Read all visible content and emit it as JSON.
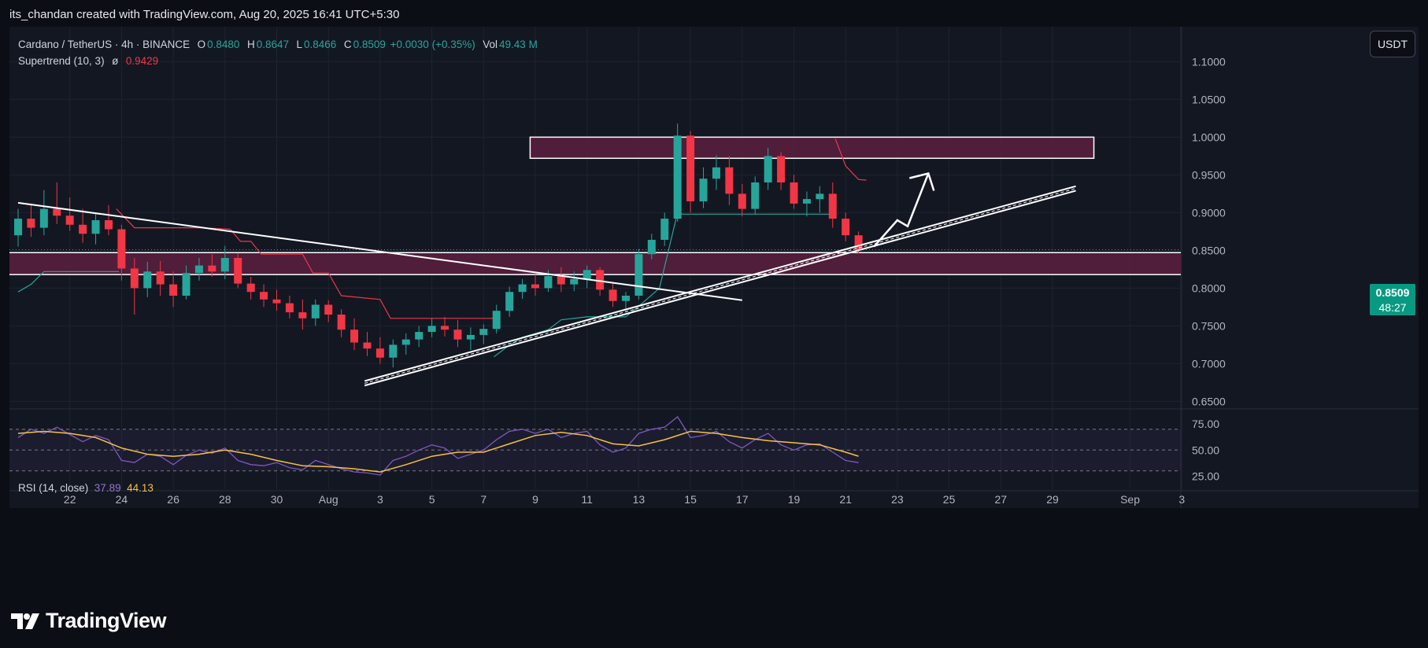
{
  "header": {
    "attribution": "its_chandan created with TradingView.com, Aug 20, 2025 16:41 UTC+5:30"
  },
  "legend": {
    "symbol": "Cardano / TetherUS · 4h · BINANCE",
    "o_label": "O",
    "open": "0.8480",
    "h_label": "H",
    "high": "0.8647",
    "l_label": "L",
    "low": "0.8466",
    "c_label": "C",
    "close": "0.8509",
    "change": "+0.0030 (+0.35%)",
    "vol_label": "Vol",
    "volume": "49.43 M",
    "indicator": "Supertrend (10, 3)",
    "indicator_symbol": "ø",
    "indicator_value": "0.9429"
  },
  "rsi_legend": {
    "name": "RSI (14, close)",
    "rsi": "37.89",
    "ma": "44.13"
  },
  "currency_button": "USDT",
  "price_tag": {
    "price": "0.8509",
    "countdown": "48:27"
  },
  "brand": {
    "name": "TradingView"
  },
  "colors": {
    "up": "#26a69a",
    "down": "#f23645",
    "rsi": "#7e57c2",
    "rsi_ma": "#f5c242",
    "zone": "#5c1f3f",
    "background": "#131722"
  },
  "chart_data": {
    "type": "candlestick",
    "title": "Cardano / TetherUS · 4h · BINANCE",
    "yaxis_ticks": [
      "1.1000",
      "1.0500",
      "1.0000",
      "0.9500",
      "0.9000",
      "0.8500",
      "0.8000",
      "0.7500",
      "0.7000",
      "0.6500"
    ],
    "ylim": [
      0.64,
      1.14
    ],
    "xaxis_ticks": [
      "22",
      "24",
      "26",
      "28",
      "30",
      "Aug",
      "3",
      "5",
      "7",
      "9",
      "11",
      "13",
      "15",
      "17",
      "19",
      "21",
      "23",
      "25",
      "27",
      "29",
      "Sep",
      "3"
    ],
    "xaxis_days": [
      22,
      24,
      26,
      28,
      30,
      32,
      34,
      36,
      38,
      40,
      42,
      44,
      46,
      48,
      50,
      52,
      54,
      56,
      58,
      60,
      63,
      65
    ],
    "candles_daily": [
      {
        "day": 20.0,
        "o": 0.87,
        "h": 0.905,
        "l": 0.855,
        "c": 0.892
      },
      {
        "day": 20.5,
        "o": 0.892,
        "h": 0.912,
        "l": 0.868,
        "c": 0.88
      },
      {
        "day": 21.0,
        "o": 0.88,
        "h": 0.93,
        "l": 0.87,
        "c": 0.905
      },
      {
        "day": 21.5,
        "o": 0.905,
        "h": 0.94,
        "l": 0.885,
        "c": 0.896
      },
      {
        "day": 22.0,
        "o": 0.896,
        "h": 0.92,
        "l": 0.876,
        "c": 0.884
      },
      {
        "day": 22.5,
        "o": 0.884,
        "h": 0.905,
        "l": 0.86,
        "c": 0.872
      },
      {
        "day": 23.0,
        "o": 0.872,
        "h": 0.898,
        "l": 0.858,
        "c": 0.89
      },
      {
        "day": 23.5,
        "o": 0.89,
        "h": 0.91,
        "l": 0.87,
        "c": 0.878
      },
      {
        "day": 24.0,
        "o": 0.878,
        "h": 0.884,
        "l": 0.81,
        "c": 0.826
      },
      {
        "day": 24.5,
        "o": 0.826,
        "h": 0.84,
        "l": 0.765,
        "c": 0.8
      },
      {
        "day": 25.0,
        "o": 0.8,
        "h": 0.835,
        "l": 0.788,
        "c": 0.822
      },
      {
        "day": 25.5,
        "o": 0.822,
        "h": 0.836,
        "l": 0.79,
        "c": 0.805
      },
      {
        "day": 26.0,
        "o": 0.805,
        "h": 0.822,
        "l": 0.775,
        "c": 0.79
      },
      {
        "day": 26.5,
        "o": 0.79,
        "h": 0.83,
        "l": 0.785,
        "c": 0.82
      },
      {
        "day": 27.0,
        "o": 0.82,
        "h": 0.84,
        "l": 0.81,
        "c": 0.83
      },
      {
        "day": 27.5,
        "o": 0.83,
        "h": 0.845,
        "l": 0.815,
        "c": 0.822
      },
      {
        "day": 28.0,
        "o": 0.822,
        "h": 0.856,
        "l": 0.812,
        "c": 0.84
      },
      {
        "day": 28.5,
        "o": 0.84,
        "h": 0.846,
        "l": 0.8,
        "c": 0.806
      },
      {
        "day": 29.0,
        "o": 0.806,
        "h": 0.815,
        "l": 0.785,
        "c": 0.795
      },
      {
        "day": 29.5,
        "o": 0.795,
        "h": 0.805,
        "l": 0.775,
        "c": 0.785
      },
      {
        "day": 30.0,
        "o": 0.785,
        "h": 0.798,
        "l": 0.77,
        "c": 0.78
      },
      {
        "day": 30.5,
        "o": 0.78,
        "h": 0.79,
        "l": 0.76,
        "c": 0.768
      },
      {
        "day": 31.0,
        "o": 0.768,
        "h": 0.785,
        "l": 0.745,
        "c": 0.76
      },
      {
        "day": 31.5,
        "o": 0.76,
        "h": 0.785,
        "l": 0.75,
        "c": 0.778
      },
      {
        "day": 32.0,
        "o": 0.778,
        "h": 0.784,
        "l": 0.755,
        "c": 0.765
      },
      {
        "day": 32.5,
        "o": 0.765,
        "h": 0.772,
        "l": 0.735,
        "c": 0.745
      },
      {
        "day": 33.0,
        "o": 0.745,
        "h": 0.76,
        "l": 0.718,
        "c": 0.728
      },
      {
        "day": 33.5,
        "o": 0.728,
        "h": 0.742,
        "l": 0.71,
        "c": 0.72
      },
      {
        "day": 34.0,
        "o": 0.72,
        "h": 0.735,
        "l": 0.7,
        "c": 0.708
      },
      {
        "day": 34.5,
        "o": 0.708,
        "h": 0.732,
        "l": 0.695,
        "c": 0.725
      },
      {
        "day": 35.0,
        "o": 0.725,
        "h": 0.74,
        "l": 0.712,
        "c": 0.732
      },
      {
        "day": 35.5,
        "o": 0.732,
        "h": 0.75,
        "l": 0.722,
        "c": 0.742
      },
      {
        "day": 36.0,
        "o": 0.742,
        "h": 0.76,
        "l": 0.735,
        "c": 0.75
      },
      {
        "day": 36.5,
        "o": 0.75,
        "h": 0.762,
        "l": 0.736,
        "c": 0.745
      },
      {
        "day": 37.0,
        "o": 0.745,
        "h": 0.758,
        "l": 0.722,
        "c": 0.732
      },
      {
        "day": 37.5,
        "o": 0.732,
        "h": 0.748,
        "l": 0.718,
        "c": 0.738
      },
      {
        "day": 38.0,
        "o": 0.738,
        "h": 0.752,
        "l": 0.726,
        "c": 0.746
      },
      {
        "day": 38.5,
        "o": 0.746,
        "h": 0.778,
        "l": 0.74,
        "c": 0.77
      },
      {
        "day": 39.0,
        "o": 0.77,
        "h": 0.802,
        "l": 0.762,
        "c": 0.795
      },
      {
        "day": 39.5,
        "o": 0.795,
        "h": 0.812,
        "l": 0.786,
        "c": 0.805
      },
      {
        "day": 40.0,
        "o": 0.805,
        "h": 0.818,
        "l": 0.79,
        "c": 0.8
      },
      {
        "day": 40.5,
        "o": 0.8,
        "h": 0.824,
        "l": 0.795,
        "c": 0.816
      },
      {
        "day": 41.0,
        "o": 0.816,
        "h": 0.828,
        "l": 0.795,
        "c": 0.805
      },
      {
        "day": 41.5,
        "o": 0.805,
        "h": 0.822,
        "l": 0.796,
        "c": 0.812
      },
      {
        "day": 42.0,
        "o": 0.812,
        "h": 0.83,
        "l": 0.8,
        "c": 0.824
      },
      {
        "day": 42.5,
        "o": 0.824,
        "h": 0.828,
        "l": 0.79,
        "c": 0.798
      },
      {
        "day": 43.0,
        "o": 0.798,
        "h": 0.808,
        "l": 0.775,
        "c": 0.783
      },
      {
        "day": 43.5,
        "o": 0.783,
        "h": 0.795,
        "l": 0.77,
        "c": 0.79
      },
      {
        "day": 44.0,
        "o": 0.79,
        "h": 0.852,
        "l": 0.785,
        "c": 0.845
      },
      {
        "day": 44.5,
        "o": 0.845,
        "h": 0.872,
        "l": 0.838,
        "c": 0.864
      },
      {
        "day": 45.0,
        "o": 0.864,
        "h": 0.9,
        "l": 0.856,
        "c": 0.892
      },
      {
        "day": 45.5,
        "o": 0.892,
        "h": 1.018,
        "l": 0.888,
        "c": 1.002
      },
      {
        "day": 46.0,
        "o": 1.002,
        "h": 1.008,
        "l": 0.9,
        "c": 0.915
      },
      {
        "day": 46.5,
        "o": 0.915,
        "h": 0.96,
        "l": 0.906,
        "c": 0.945
      },
      {
        "day": 47.0,
        "o": 0.945,
        "h": 0.976,
        "l": 0.93,
        "c": 0.96
      },
      {
        "day": 47.5,
        "o": 0.96,
        "h": 0.975,
        "l": 0.91,
        "c": 0.925
      },
      {
        "day": 48.0,
        "o": 0.925,
        "h": 0.938,
        "l": 0.895,
        "c": 0.905
      },
      {
        "day": 48.5,
        "o": 0.905,
        "h": 0.948,
        "l": 0.898,
        "c": 0.94
      },
      {
        "day": 49.0,
        "o": 0.94,
        "h": 0.986,
        "l": 0.93,
        "c": 0.975
      },
      {
        "day": 49.5,
        "o": 0.975,
        "h": 0.98,
        "l": 0.93,
        "c": 0.94
      },
      {
        "day": 50.0,
        "o": 0.94,
        "h": 0.95,
        "l": 0.905,
        "c": 0.912
      },
      {
        "day": 50.5,
        "o": 0.912,
        "h": 0.928,
        "l": 0.895,
        "c": 0.918
      },
      {
        "day": 51.0,
        "o": 0.918,
        "h": 0.935,
        "l": 0.9,
        "c": 0.925
      },
      {
        "day": 51.5,
        "o": 0.925,
        "h": 0.94,
        "l": 0.88,
        "c": 0.892
      },
      {
        "day": 52.0,
        "o": 0.892,
        "h": 0.9,
        "l": 0.862,
        "c": 0.87
      },
      {
        "day": 52.5,
        "o": 0.87,
        "h": 0.875,
        "l": 0.846,
        "c": 0.851
      }
    ],
    "supertrend_down": [
      {
        "day": 23.8,
        "y": 0.905
      },
      {
        "day": 24.5,
        "y": 0.88
      },
      {
        "day": 27.0,
        "y": 0.88
      },
      {
        "day": 28.2,
        "y": 0.878
      },
      {
        "day": 28.6,
        "y": 0.862
      },
      {
        "day": 29.0,
        "y": 0.862
      },
      {
        "day": 29.4,
        "y": 0.845
      },
      {
        "day": 31.0,
        "y": 0.845
      },
      {
        "day": 31.4,
        "y": 0.82
      },
      {
        "day": 32.0,
        "y": 0.82
      },
      {
        "day": 32.5,
        "y": 0.79
      },
      {
        "day": 34.0,
        "y": 0.785
      },
      {
        "day": 34.4,
        "y": 0.76
      },
      {
        "day": 38.5,
        "y": 0.76
      }
    ],
    "supertrend_up_early": [
      {
        "day": 20.0,
        "y": 0.795
      },
      {
        "day": 20.5,
        "y": 0.805
      },
      {
        "day": 21.0,
        "y": 0.822
      },
      {
        "day": 23.9,
        "y": 0.822
      }
    ],
    "supertrend_up": [
      {
        "day": 38.4,
        "y": 0.709
      },
      {
        "day": 38.9,
        "y": 0.722
      },
      {
        "day": 39.5,
        "y": 0.735
      },
      {
        "day": 40.5,
        "y": 0.745
      },
      {
        "day": 41.0,
        "y": 0.758
      },
      {
        "day": 42.0,
        "y": 0.762
      },
      {
        "day": 43.5,
        "y": 0.762
      },
      {
        "day": 44.2,
        "y": 0.782
      },
      {
        "day": 44.8,
        "y": 0.8
      },
      {
        "day": 45.5,
        "y": 0.9
      },
      {
        "day": 45.7,
        "y": 0.898
      },
      {
        "day": 51.6,
        "y": 0.898
      }
    ],
    "supertrend_down_late": [
      {
        "day": 51.6,
        "y": 0.998
      },
      {
        "day": 52.0,
        "y": 0.962
      },
      {
        "day": 52.5,
        "y": 0.944
      },
      {
        "day": 52.8,
        "y": 0.943
      }
    ],
    "resistance_zone": [
      0.972,
      1.0
    ],
    "support_zone": [
      0.818,
      0.847
    ],
    "current_price_line": 0.8509,
    "rsi": {
      "ticks": [
        "75.00",
        "50.00",
        "25.00"
      ],
      "levels": [
        70,
        50,
        30
      ],
      "ylim": [
        20,
        85
      ],
      "rsi_values": [
        {
          "day": 20.0,
          "v": 62
        },
        {
          "day": 20.5,
          "v": 70
        },
        {
          "day": 21.0,
          "v": 66
        },
        {
          "day": 21.5,
          "v": 72
        },
        {
          "day": 22.0,
          "v": 65
        },
        {
          "day": 22.5,
          "v": 58
        },
        {
          "day": 23.0,
          "v": 64
        },
        {
          "day": 23.5,
          "v": 60
        },
        {
          "day": 24.0,
          "v": 40
        },
        {
          "day": 24.5,
          "v": 38
        },
        {
          "day": 25.0,
          "v": 46
        },
        {
          "day": 25.5,
          "v": 44
        },
        {
          "day": 26.0,
          "v": 36
        },
        {
          "day": 26.5,
          "v": 45
        },
        {
          "day": 27.0,
          "v": 50
        },
        {
          "day": 27.5,
          "v": 47
        },
        {
          "day": 28.0,
          "v": 52
        },
        {
          "day": 28.5,
          "v": 40
        },
        {
          "day": 29.0,
          "v": 36
        },
        {
          "day": 29.5,
          "v": 35
        },
        {
          "day": 30.0,
          "v": 38
        },
        {
          "day": 30.5,
          "v": 33
        },
        {
          "day": 31.0,
          "v": 31
        },
        {
          "day": 31.5,
          "v": 40
        },
        {
          "day": 32.0,
          "v": 36
        },
        {
          "day": 32.5,
          "v": 32
        },
        {
          "day": 33.0,
          "v": 29
        },
        {
          "day": 33.5,
          "v": 28
        },
        {
          "day": 34.0,
          "v": 26
        },
        {
          "day": 34.5,
          "v": 40
        },
        {
          "day": 35.0,
          "v": 44
        },
        {
          "day": 35.5,
          "v": 50
        },
        {
          "day": 36.0,
          "v": 55
        },
        {
          "day": 36.5,
          "v": 52
        },
        {
          "day": 37.0,
          "v": 42
        },
        {
          "day": 37.5,
          "v": 46
        },
        {
          "day": 38.0,
          "v": 50
        },
        {
          "day": 38.5,
          "v": 60
        },
        {
          "day": 39.0,
          "v": 68
        },
        {
          "day": 39.5,
          "v": 70
        },
        {
          "day": 40.0,
          "v": 66
        },
        {
          "day": 40.5,
          "v": 70
        },
        {
          "day": 41.0,
          "v": 62
        },
        {
          "day": 41.5,
          "v": 66
        },
        {
          "day": 42.0,
          "v": 68
        },
        {
          "day": 42.5,
          "v": 55
        },
        {
          "day": 43.0,
          "v": 48
        },
        {
          "day": 43.5,
          "v": 52
        },
        {
          "day": 44.0,
          "v": 66
        },
        {
          "day": 44.5,
          "v": 70
        },
        {
          "day": 45.0,
          "v": 72
        },
        {
          "day": 45.5,
          "v": 82
        },
        {
          "day": 46.0,
          "v": 62
        },
        {
          "day": 46.5,
          "v": 64
        },
        {
          "day": 47.0,
          "v": 68
        },
        {
          "day": 47.5,
          "v": 58
        },
        {
          "day": 48.0,
          "v": 52
        },
        {
          "day": 48.5,
          "v": 60
        },
        {
          "day": 49.0,
          "v": 66
        },
        {
          "day": 49.5,
          "v": 55
        },
        {
          "day": 50.0,
          "v": 50
        },
        {
          "day": 50.5,
          "v": 55
        },
        {
          "day": 51.0,
          "v": 56
        },
        {
          "day": 51.5,
          "v": 48
        },
        {
          "day": 52.0,
          "v": 40
        },
        {
          "day": 52.5,
          "v": 37.89
        }
      ],
      "ma_values": [
        {
          "day": 20.0,
          "v": 66
        },
        {
          "day": 21.0,
          "v": 68
        },
        {
          "day": 22.0,
          "v": 66
        },
        {
          "day": 23.0,
          "v": 62
        },
        {
          "day": 24.0,
          "v": 52
        },
        {
          "day": 25.0,
          "v": 46
        },
        {
          "day": 26.0,
          "v": 44
        },
        {
          "day": 27.0,
          "v": 46
        },
        {
          "day": 28.0,
          "v": 50
        },
        {
          "day": 29.0,
          "v": 46
        },
        {
          "day": 30.0,
          "v": 40
        },
        {
          "day": 31.0,
          "v": 35
        },
        {
          "day": 32.0,
          "v": 34
        },
        {
          "day": 33.0,
          "v": 32
        },
        {
          "day": 34.0,
          "v": 29
        },
        {
          "day": 35.0,
          "v": 36
        },
        {
          "day": 36.0,
          "v": 44
        },
        {
          "day": 37.0,
          "v": 48
        },
        {
          "day": 38.0,
          "v": 48
        },
        {
          "day": 39.0,
          "v": 56
        },
        {
          "day": 40.0,
          "v": 64
        },
        {
          "day": 41.0,
          "v": 67
        },
        {
          "day": 42.0,
          "v": 64
        },
        {
          "day": 43.0,
          "v": 56
        },
        {
          "day": 44.0,
          "v": 54
        },
        {
          "day": 45.0,
          "v": 60
        },
        {
          "day": 46.0,
          "v": 68
        },
        {
          "day": 47.0,
          "v": 66
        },
        {
          "day": 48.0,
          "v": 62
        },
        {
          "day": 49.0,
          "v": 59
        },
        {
          "day": 50.0,
          "v": 57
        },
        {
          "day": 51.0,
          "v": 55
        },
        {
          "day": 52.0,
          "v": 48
        },
        {
          "day": 52.5,
          "v": 44.13
        }
      ]
    },
    "annotations": {
      "downtrend_line": [
        {
          "day": 20.0,
          "y": 0.913
        },
        {
          "day": 48.0,
          "y": 0.784
        }
      ],
      "uptrend_lines": [
        [
          {
            "day": 33.4,
            "y": 0.677
          },
          {
            "day": 60.9,
            "y": 0.935
          }
        ],
        [
          {
            "day": 33.4,
            "y": 0.671
          },
          {
            "day": 60.9,
            "y": 0.929
          }
        ]
      ],
      "arrow": [
        {
          "day": 53.1,
          "y": 0.855
        },
        {
          "day": 54.0,
          "y": 0.89
        },
        {
          "day": 54.4,
          "y": 0.882
        },
        {
          "day": 55.2,
          "y": 0.952
        }
      ]
    }
  }
}
